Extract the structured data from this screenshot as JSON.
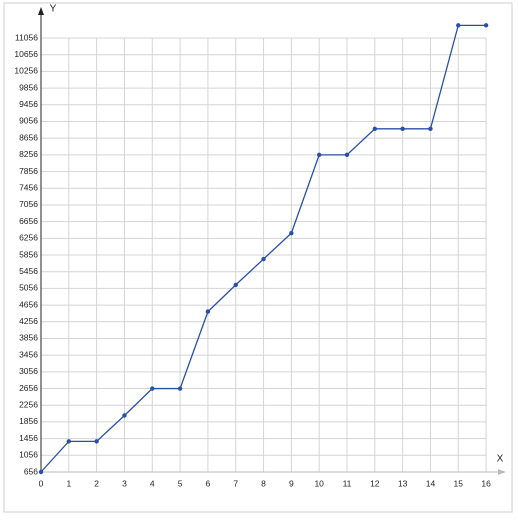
{
  "chart_data": {
    "type": "line",
    "x_label": "X",
    "y_label": "Y",
    "x": [
      0,
      1,
      2,
      3,
      4,
      5,
      6,
      7,
      8,
      9,
      10,
      11,
      12,
      13,
      14,
      15,
      16
    ],
    "series": [
      {
        "color": "#2a4fa8",
        "values": [
          656,
          1390,
          1390,
          2010,
          2656,
          2656,
          4500,
          5140,
          5760,
          6380,
          8256,
          8256,
          8880,
          8880,
          8880,
          11360,
          11360
        ]
      }
    ],
    "xlim": [
      0,
      16.5
    ],
    "xticks": [
      0,
      1,
      2,
      3,
      4,
      5,
      6,
      7,
      8,
      9,
      10,
      11,
      12,
      13,
      14,
      15,
      16
    ],
    "ylim": [
      656,
      11656
    ],
    "yticks": [
      656,
      1056,
      1456,
      1856,
      2256,
      2656,
      3056,
      3456,
      3856,
      4256,
      4656,
      5056,
      5456,
      5856,
      6256,
      6656,
      7056,
      7456,
      7856,
      8256,
      8656,
      9056,
      9456,
      9856,
      10256,
      10656,
      11056
    ],
    "grid": true
  }
}
